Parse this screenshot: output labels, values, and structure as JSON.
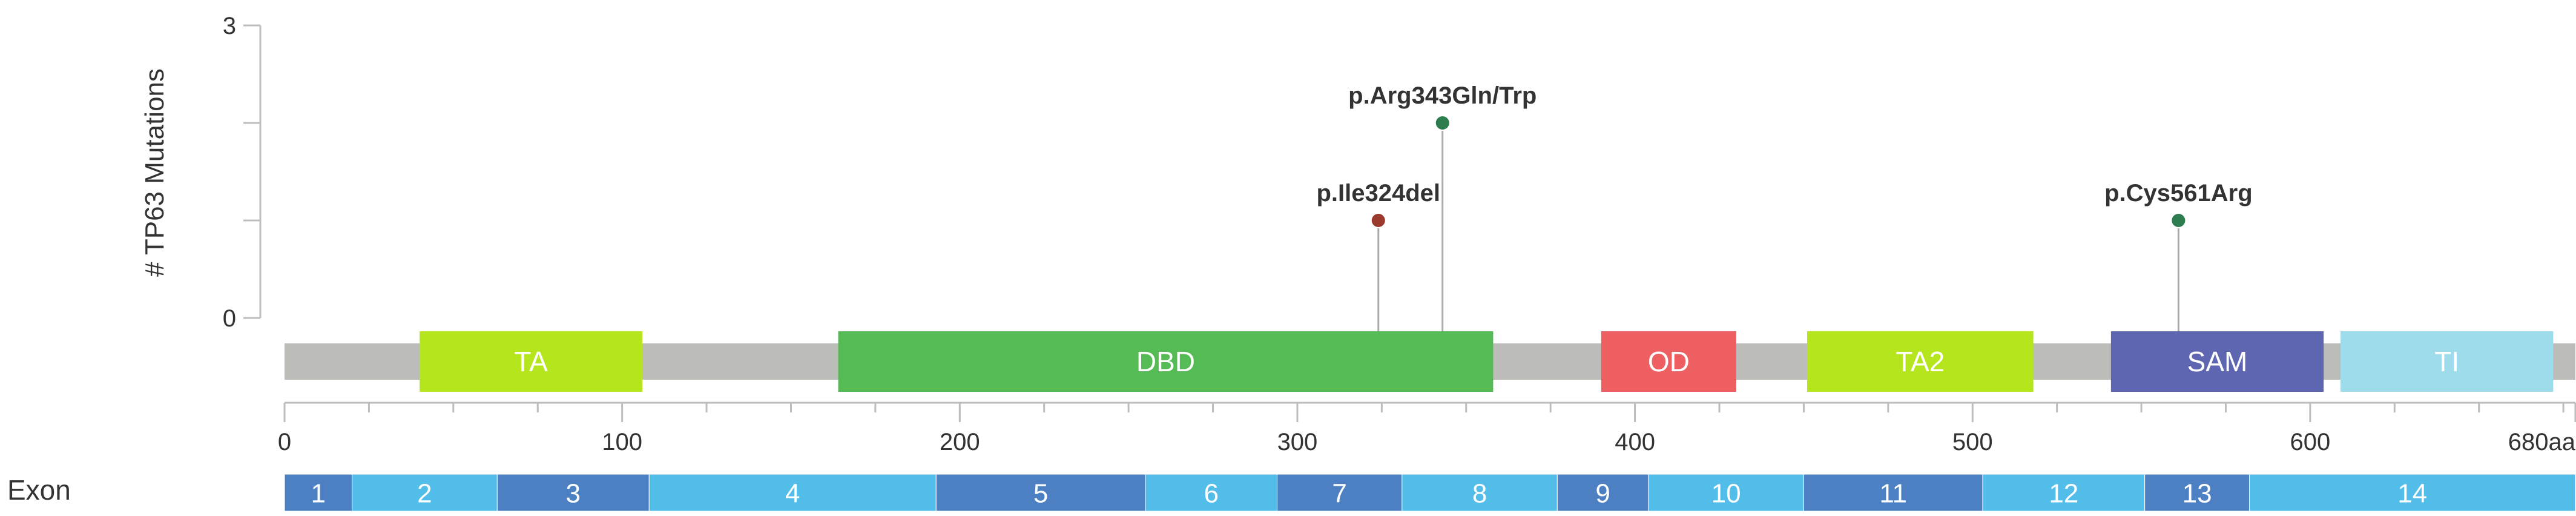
{
  "chart_data": {
    "type": "lollipop",
    "ylabel": "# TP63 Mutations",
    "ylim": [
      0,
      3
    ],
    "y_ticks": [
      "0",
      "3"
    ],
    "protein_length": 680,
    "x_ticks": [
      {
        "value": 0,
        "label": "0"
      },
      {
        "value": 100,
        "label": "100"
      },
      {
        "value": 200,
        "label": "200"
      },
      {
        "value": 300,
        "label": "300"
      },
      {
        "value": 400,
        "label": "400"
      },
      {
        "value": 500,
        "label": "500"
      },
      {
        "value": 600,
        "label": "600"
      },
      {
        "value": 680,
        "label": "680aa"
      }
    ],
    "domains": [
      {
        "label": "TA",
        "start": 40,
        "end": 106,
        "color": "#b5e61d",
        "text_color": "#ffffff"
      },
      {
        "label": "DBD",
        "start": 164,
        "end": 358,
        "color": "#55bb55",
        "text_color": "#ffffff"
      },
      {
        "label": "OD",
        "start": 390,
        "end": 430,
        "color": "#ee5f62",
        "text_color": "#ffffff"
      },
      {
        "label": "TA2",
        "start": 451,
        "end": 518,
        "color": "#b5e61d",
        "text_color": "#ffffff"
      },
      {
        "label": "SAM",
        "start": 541,
        "end": 604,
        "color": "#5e66b2",
        "text_color": "#ffffff"
      },
      {
        "label": "TI",
        "start": 609,
        "end": 672,
        "color": "#9edbeb",
        "text_color": "#ffffff"
      }
    ],
    "mutations": [
      {
        "label": "p.Ile324del",
        "position": 324,
        "count": 1,
        "color": "#993a2d"
      },
      {
        "label": "p.Arg343Gln/Trp",
        "position": 343,
        "count": 2,
        "color": "#2e7d4f"
      },
      {
        "label": "p.Cys561Arg",
        "position": 561,
        "count": 1,
        "color": "#2e7d4f"
      }
    ],
    "exon_label": "Exon",
    "exons": [
      {
        "label": "1",
        "start": 0,
        "end": 20
      },
      {
        "label": "2",
        "start": 20,
        "end": 63
      },
      {
        "label": "3",
        "start": 63,
        "end": 108
      },
      {
        "label": "4",
        "start": 108,
        "end": 193
      },
      {
        "label": "5",
        "start": 193,
        "end": 255
      },
      {
        "label": "6",
        "start": 255,
        "end": 294
      },
      {
        "label": "7",
        "start": 294,
        "end": 331
      },
      {
        "label": "8",
        "start": 331,
        "end": 377
      },
      {
        "label": "9",
        "start": 377,
        "end": 404
      },
      {
        "label": "10",
        "start": 404,
        "end": 450
      },
      {
        "label": "11",
        "start": 450,
        "end": 503
      },
      {
        "label": "12",
        "start": 503,
        "end": 551
      },
      {
        "label": "13",
        "start": 551,
        "end": 582
      },
      {
        "label": "14",
        "start": 582,
        "end": 680
      }
    ],
    "colors": {
      "backbone": "#bcbdb8",
      "axis": "#bdbdbd",
      "stem": "#aaaaaa",
      "exon_dark": "#4c80c3",
      "exon_light": "#52bde9",
      "text": "#333333"
    }
  }
}
